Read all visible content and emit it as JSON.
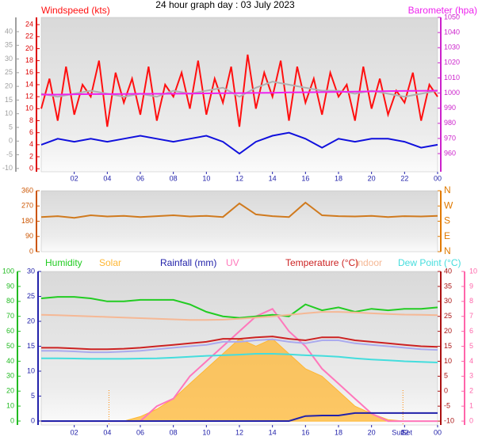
{
  "chart_data": [
    {
      "type": "line",
      "title": "24 hour graph day : 03 July 2023",
      "x": [
        0,
        1,
        2,
        3,
        4,
        5,
        6,
        7,
        8,
        9,
        10,
        11,
        12,
        13,
        14,
        15,
        16,
        17,
        18,
        19,
        20,
        21,
        22,
        23,
        24
      ],
      "xlim": [
        0,
        24
      ],
      "xticks": [
        {
          "value": 2,
          "label": "02"
        },
        {
          "value": 4,
          "label": "04"
        },
        {
          "value": 6,
          "label": "06"
        },
        {
          "value": 8,
          "label": "08"
        },
        10,
        12,
        14,
        16,
        18,
        20,
        22,
        {
          "value": 24,
          "label": "00"
        }
      ],
      "ylim": [
        -0.5,
        25.2
      ],
      "yticks": [
        0,
        2,
        4,
        6,
        8,
        10,
        12,
        14,
        16,
        18,
        20,
        22,
        24
      ],
      "y3lim": [
        -11.2,
        45.2
      ],
      "y3ticks": [
        -10,
        -5,
        0,
        5,
        10,
        15,
        20,
        25,
        30,
        35,
        40
      ],
      "y2lim": [
        948,
        1050
      ],
      "y2ticks": [
        960,
        970,
        980,
        990,
        1000,
        1010,
        1020,
        1030,
        1040,
        1050
      ],
      "series": [
        {
          "name": "Windspeed (kts)",
          "color": "#ff1010",
          "x": [
            0,
            0.5,
            1,
            1.5,
            2,
            2.5,
            3,
            3.5,
            4,
            4.5,
            5,
            5.5,
            6,
            6.5,
            7,
            7.5,
            8,
            8.5,
            9,
            9.5,
            10,
            10.5,
            11,
            11.5,
            12,
            12.5,
            13,
            13.5,
            14,
            14.5,
            15,
            15.5,
            16,
            16.5,
            17,
            17.5,
            18,
            18.5,
            19,
            19.5,
            20,
            20.5,
            21,
            21.5,
            22,
            22.5,
            23,
            23.5,
            24
          ],
          "values": [
            10,
            15,
            8,
            17,
            9,
            14,
            12,
            18,
            7,
            16,
            11,
            15,
            9,
            17,
            8,
            14,
            12,
            16,
            10,
            18,
            9,
            15,
            11,
            17,
            7,
            19,
            10,
            16,
            12,
            18,
            8,
            17,
            11,
            15,
            9,
            16,
            12,
            14,
            8,
            17,
            10,
            15,
            9,
            13,
            11,
            16,
            8,
            14,
            12
          ]
        },
        {
          "color": "#b0b0b0",
          "values": [
            12.5,
            12,
            12.5,
            13,
            12.5,
            12,
            12.5,
            12,
            13,
            12.5,
            13,
            13.5,
            12,
            13.5,
            14.5,
            14,
            13.5,
            13,
            13,
            12.5,
            13,
            12.5,
            12,
            12.5,
            13
          ]
        },
        {
          "color": "#1010dd",
          "values": [
            4,
            5,
            4.5,
            5,
            4.5,
            5,
            5.5,
            5,
            4.5,
            5,
            5.5,
            4.5,
            2.5,
            4.5,
            5.5,
            6,
            5,
            3.5,
            5,
            4.5,
            5,
            5,
            4.5,
            3.5,
            4
          ]
        },
        {
          "name": "Barometer (hpa)",
          "color": "#ee22ee",
          "axis": "y2",
          "values": [
            999,
            999,
            999.2,
            999.3,
            999.3,
            999.4,
            999.5,
            999.5,
            999.6,
            999.7,
            999.8,
            999.9,
            1000,
            1000.1,
            1000.2,
            1000.4,
            1000.5,
            1000.6,
            1000.8,
            1001,
            1001.1,
            1001.3,
            1001.4,
            1001.5,
            1001.6
          ]
        }
      ]
    },
    {
      "type": "line",
      "x": [
        0,
        1,
        2,
        3,
        4,
        5,
        6,
        7,
        8,
        9,
        10,
        11,
        12,
        13,
        14,
        15,
        16,
        17,
        18,
        19,
        20,
        21,
        22,
        23,
        24
      ],
      "xlim": [
        0,
        24
      ],
      "ylim": [
        0,
        360
      ],
      "yticks": [
        0,
        90,
        180,
        270,
        360
      ],
      "y2lim": [
        0,
        360
      ],
      "y2ticks": [
        {
          "value": 0,
          "label": "N"
        },
        {
          "value": 90,
          "label": "E"
        },
        {
          "value": 180,
          "label": "S"
        },
        {
          "value": 270,
          "label": "W"
        },
        {
          "value": 360,
          "label": "N"
        }
      ],
      "series": [
        {
          "color": "#d07a1e",
          "values": [
            205,
            210,
            200,
            215,
            208,
            212,
            205,
            210,
            215,
            208,
            212,
            205,
            285,
            220,
            210,
            205,
            290,
            215,
            210,
            208,
            212,
            205,
            210,
            208,
            212
          ]
        }
      ]
    },
    {
      "type": "line",
      "x": [
        0,
        1,
        2,
        3,
        4,
        5,
        6,
        7,
        8,
        9,
        10,
        11,
        12,
        13,
        14,
        15,
        16,
        17,
        18,
        19,
        20,
        21,
        22,
        23,
        24
      ],
      "xlim": [
        0,
        24
      ],
      "xticks": [
        {
          "value": 2,
          "label": "02"
        },
        {
          "value": 4,
          "label": "04"
        },
        {
          "value": 6,
          "label": "06"
        },
        {
          "value": 8,
          "label": "08"
        },
        10,
        12,
        14,
        16,
        18,
        20,
        22,
        {
          "value": 24,
          "label": "00"
        }
      ],
      "ylim": [
        -2.65,
        100
      ],
      "yticks": [
        0,
        10,
        20,
        30,
        40,
        50,
        60,
        70,
        80,
        90,
        100
      ],
      "y3lim": [
        -0.8,
        30
      ],
      "y3ticks": [
        0,
        5,
        10,
        15,
        20,
        25,
        30
      ],
      "y2lim": [
        -11.3,
        40
      ],
      "y2ticks": [
        -10,
        -5,
        0,
        5,
        10,
        15,
        20,
        25,
        30,
        35,
        40
      ],
      "y4lim": [
        -0.26,
        10
      ],
      "y4ticks": [
        0,
        1,
        2,
        3,
        4,
        5,
        6,
        7,
        8,
        9,
        10
      ],
      "sun_times": [
        4.1,
        21.9
      ],
      "annotations": [
        "Sun",
        "Set"
      ],
      "series": [
        {
          "name": "Solar",
          "color": "#ffb733",
          "axis": "y4",
          "area": true,
          "values": [
            0,
            0,
            0,
            0,
            0,
            0,
            0.3,
            0.8,
            1.5,
            2.5,
            3.5,
            4.5,
            5.5,
            5,
            5.5,
            4.5,
            3.5,
            3,
            2,
            1,
            0.5,
            0.1,
            0,
            0,
            0
          ]
        },
        {
          "name": "UV",
          "color": "#ff77bb",
          "axis": "y4",
          "values": [
            0,
            0,
            0,
            0,
            0,
            0,
            0,
            1,
            1.5,
            3,
            4,
            5,
            6,
            7,
            7.5,
            6,
            5,
            3.5,
            2.5,
            1.5,
            0.5,
            0,
            0,
            0,
            0
          ]
        },
        {
          "name": "Humidity",
          "color": "#22cc22",
          "values": [
            82,
            83,
            83,
            82,
            80,
            80,
            81,
            81,
            81,
            78,
            73,
            70,
            69,
            70,
            71,
            70,
            78,
            74,
            76,
            73,
            75,
            74,
            75,
            75,
            76
          ]
        },
        {
          "color": "#aaaaee",
          "axis": "y2",
          "values": [
            13.5,
            13.5,
            13.3,
            13,
            13,
            13.2,
            13.5,
            14,
            14.5,
            15,
            15.5,
            16.5,
            16.5,
            17,
            17.3,
            16.5,
            16,
            17,
            17,
            16,
            15.5,
            15,
            14.5,
            14,
            13.8
          ]
        },
        {
          "name": "Indoor",
          "color": "#f5b895",
          "axis": "y2",
          "values": [
            25.5,
            25.4,
            25.2,
            25,
            24.8,
            24.6,
            24.4,
            24.2,
            24,
            23.8,
            23.8,
            23.9,
            24.2,
            24.6,
            25,
            25.5,
            26,
            26.5,
            26.5,
            26.3,
            26,
            25.8,
            25.6,
            25.5,
            25.4
          ]
        },
        {
          "name": "Temperature (°C)",
          "color": "#cc2222",
          "axis": "y2",
          "values": [
            14.5,
            14.5,
            14.3,
            14,
            14,
            14.2,
            14.5,
            15,
            15.5,
            16,
            16.5,
            17.5,
            17.5,
            18,
            18.3,
            17.5,
            17,
            18,
            18,
            17,
            16.5,
            16,
            15.5,
            15,
            14.8
          ]
        },
        {
          "name": "Dew Point (°C)",
          "color": "#44dddd",
          "axis": "y2",
          "values": [
            11,
            11,
            10.9,
            10.8,
            10.8,
            10.8,
            10.9,
            11,
            11.2,
            11.5,
            11.8,
            12,
            12.2,
            12.5,
            12.5,
            12.3,
            12,
            11.8,
            11.5,
            11,
            10.6,
            10.3,
            10,
            9.8,
            9.6
          ]
        },
        {
          "name": "Rainfall (mm)",
          "color": "#2222aa",
          "axis": "y3",
          "values": [
            0,
            0,
            0,
            0,
            0,
            0,
            0,
            0,
            0,
            0,
            0,
            0,
            0,
            0,
            0,
            0,
            1,
            1.1,
            1.1,
            1.6,
            1.6,
            1.6,
            1.6,
            1.6,
            1.6
          ]
        }
      ]
    }
  ]
}
